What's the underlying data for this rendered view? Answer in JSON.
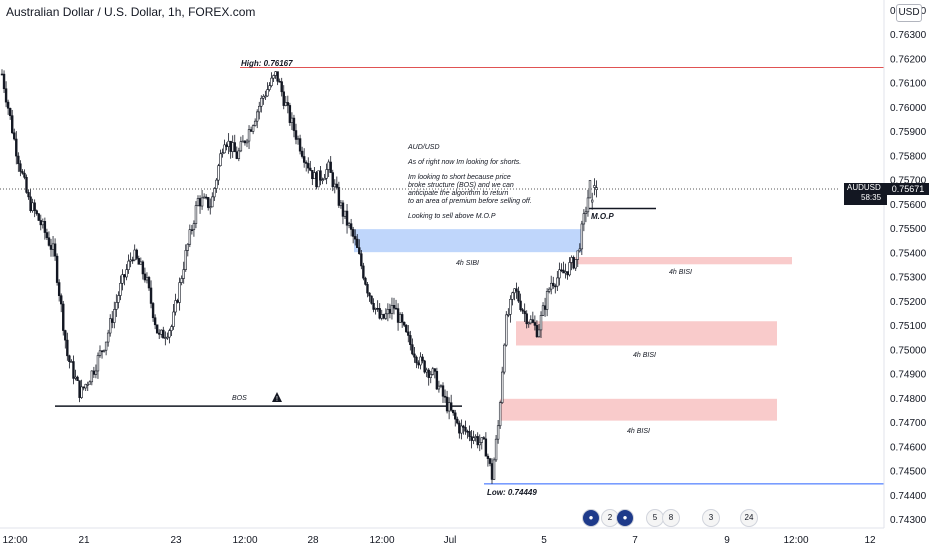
{
  "header": {
    "title": "Australian Dollar / U.S. Dollar, 1h, FOREX.com",
    "currency": "USD"
  },
  "price_tag": {
    "symbol": "AUDUSD",
    "value": "0.75671",
    "countdown": "58:35"
  },
  "chart_data": {
    "type": "candlestick",
    "symbol": "AUDUSD",
    "timeframe": "1h",
    "ylim": [
      0.7425,
      0.7652
    ],
    "y_ticks": [
      "0.76400",
      "0.76300",
      "0.76200",
      "0.76100",
      "0.76000",
      "0.75900",
      "0.75800",
      "0.75700",
      "0.75600",
      "0.75500",
      "0.75400",
      "0.75300",
      "0.75200",
      "0.75100",
      "0.75000",
      "0.74900",
      "0.74800",
      "0.74700",
      "0.74600",
      "0.74500",
      "0.74400",
      "0.74300"
    ],
    "x_ticks": [
      "12:00",
      "21",
      "23",
      "12:00",
      "28",
      "12:00",
      "Jul",
      "5",
      "7",
      "9",
      "12:00",
      "12"
    ],
    "grid": false,
    "waypoints": [
      {
        "t": 0,
        "p": 0.7614
      },
      {
        "t": 4,
        "p": 0.7585
      },
      {
        "t": 8,
        "p": 0.7562
      },
      {
        "t": 12,
        "p": 0.7552
      },
      {
        "t": 16,
        "p": 0.754
      },
      {
        "t": 20,
        "p": 0.7498
      },
      {
        "t": 24,
        "p": 0.7482
      },
      {
        "t": 28,
        "p": 0.7492
      },
      {
        "t": 32,
        "p": 0.7505
      },
      {
        "t": 36,
        "p": 0.7525
      },
      {
        "t": 40,
        "p": 0.754
      },
      {
        "t": 44,
        "p": 0.753
      },
      {
        "t": 48,
        "p": 0.7505
      },
      {
        "t": 52,
        "p": 0.751
      },
      {
        "t": 56,
        "p": 0.7538
      },
      {
        "t": 60,
        "p": 0.7562
      },
      {
        "t": 64,
        "p": 0.756
      },
      {
        "t": 68,
        "p": 0.7588
      },
      {
        "t": 72,
        "p": 0.758
      },
      {
        "t": 76,
        "p": 0.7592
      },
      {
        "t": 80,
        "p": 0.7605
      },
      {
        "t": 84,
        "p": 0.7614
      },
      {
        "t": 88,
        "p": 0.7596
      },
      {
        "t": 92,
        "p": 0.7582
      },
      {
        "t": 96,
        "p": 0.757
      },
      {
        "t": 100,
        "p": 0.7575
      },
      {
        "t": 104,
        "p": 0.7558
      },
      {
        "t": 108,
        "p": 0.7545
      },
      {
        "t": 112,
        "p": 0.7525
      },
      {
        "t": 116,
        "p": 0.7512
      },
      {
        "t": 120,
        "p": 0.7518
      },
      {
        "t": 124,
        "p": 0.7505
      },
      {
        "t": 128,
        "p": 0.7495
      },
      {
        "t": 132,
        "p": 0.749
      },
      {
        "t": 136,
        "p": 0.7478
      },
      {
        "t": 140,
        "p": 0.7468
      },
      {
        "t": 144,
        "p": 0.7465
      },
      {
        "t": 148,
        "p": 0.746
      },
      {
        "t": 150,
        "p": 0.7448
      },
      {
        "t": 152,
        "p": 0.747
      },
      {
        "t": 154,
        "p": 0.751
      },
      {
        "t": 157,
        "p": 0.7525
      },
      {
        "t": 160,
        "p": 0.7515
      },
      {
        "t": 164,
        "p": 0.7508
      },
      {
        "t": 168,
        "p": 0.7528
      },
      {
        "t": 172,
        "p": 0.7532
      },
      {
        "t": 176,
        "p": 0.7538
      },
      {
        "t": 180,
        "p": 0.7568
      }
    ],
    "levels": [
      {
        "label": "High: 0.76167",
        "price": 0.76167,
        "color": "#e05252"
      },
      {
        "label": "Low: 0.74449",
        "price": 0.74449,
        "color": "#2962ff"
      },
      {
        "label": "BOS",
        "price": 0.7477,
        "color": "#131722"
      },
      {
        "label": "M.O.P",
        "price": 0.75585,
        "color": "#131722"
      }
    ],
    "zones": [
      {
        "label": "4h SIBI",
        "top": 0.755,
        "bottom": 0.75405,
        "color": "#8ab4f8"
      },
      {
        "label": "4h BISI",
        "top": 0.75385,
        "bottom": 0.75355,
        "color": "#f4a0a0"
      },
      {
        "label": "4h BISI",
        "top": 0.7512,
        "bottom": 0.7502,
        "color": "#f4a0a0"
      },
      {
        "label": "4h BISI",
        "top": 0.748,
        "bottom": 0.7471,
        "color": "#f4a0a0"
      }
    ],
    "last_price": 0.75671
  },
  "annotation": {
    "lines": [
      "AUD/USD",
      "As of right now Im looking for shorts.",
      "Im looking to short because price",
      "broke structure (BOS) and we can",
      "anticipate the algorithm to return",
      "to an area of premium before selling off.",
      "Looking to sell above M.O.P"
    ]
  },
  "events": [
    {
      "icon": "flag-au-icon",
      "text": ""
    },
    {
      "icon": "flag-us-icon",
      "text": "2"
    },
    {
      "icon": "flag-au-icon",
      "text": ""
    },
    {
      "icon": "flag-us-icon",
      "text": "5"
    },
    {
      "icon": "flag-us-icon",
      "text": "8"
    },
    {
      "icon": "flag-us-icon",
      "text": "3"
    },
    {
      "icon": "flag-us-icon",
      "text": "24"
    }
  ],
  "colors": {
    "up": "#131722",
    "down": "#131722",
    "axis_text": "#131722"
  }
}
